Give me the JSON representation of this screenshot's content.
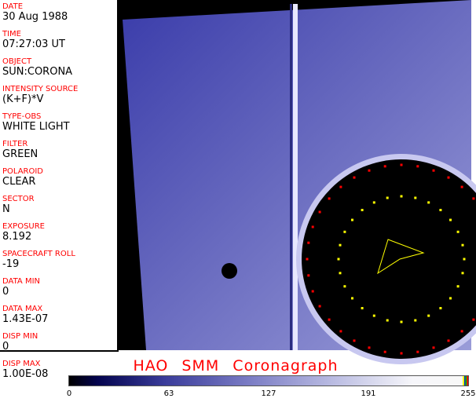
{
  "fields": [
    {
      "label": "DATE",
      "value": "30 Aug 1988"
    },
    {
      "label": "TIME",
      "value": "07:27:03 UT"
    },
    {
      "label": "OBJECT",
      "value": "SUN:CORONA"
    },
    {
      "label": "INTENSITY SOURCE",
      "value": "(K+F)*V"
    },
    {
      "label": "TYPE-OBS",
      "value": "WHITE LIGHT"
    },
    {
      "label": "FILTER",
      "value": "GREEN"
    },
    {
      "label": "POLAROID",
      "value": "CLEAR"
    },
    {
      "label": "SECTOR",
      "value": "N"
    },
    {
      "label": "EXPOSURE",
      "value": "8.192"
    },
    {
      "label": "SPACECRAFT ROLL",
      "value": "-19"
    },
    {
      "label": "DATA MIN",
      "value": "0"
    },
    {
      "label": "DATA MAX",
      "value": "1.43E-07"
    },
    {
      "label": "DISP MIN",
      "value": "0"
    },
    {
      "label": "DISP MAX",
      "value": "1.00E-08"
    }
  ],
  "title": "HAO  SMM Coronagraph",
  "colorbar": {
    "ticks": [
      "0",
      "63",
      "127",
      "191",
      "255"
    ],
    "colors": {
      "low": "#000000",
      "mid": "#7a7cc4",
      "high": "#f8f8f8"
    }
  }
}
